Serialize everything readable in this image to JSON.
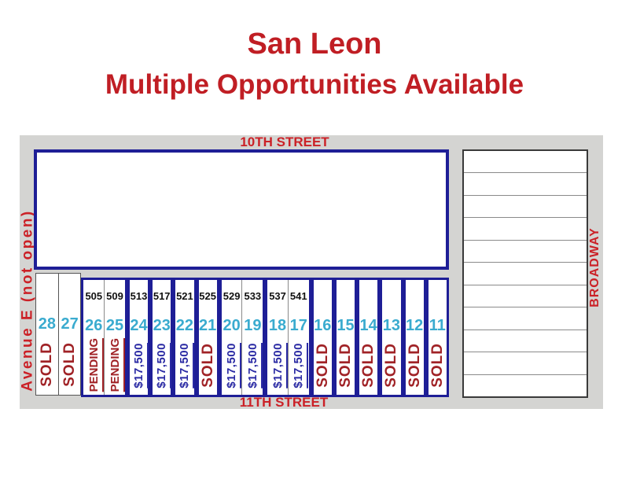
{
  "title": {
    "line1": "San Leon",
    "line2": "Multiple Opportunities Available"
  },
  "streets": {
    "top": "10TH STREET",
    "bottom": "11TH STREET",
    "left": "Avenue E (not open)",
    "right": "BROADWAY"
  },
  "lots": [
    {
      "number": "28",
      "address": "",
      "status": "SOLD",
      "style": "sold"
    },
    {
      "number": "27",
      "address": "",
      "status": "SOLD",
      "style": "sold"
    },
    {
      "number": "26",
      "address": "505",
      "status": "PENDING",
      "style": "pending"
    },
    {
      "number": "25",
      "address": "509",
      "status": "PENDING",
      "style": "pending"
    },
    {
      "number": "24",
      "address": "513",
      "status": "$17,500",
      "style": "price"
    },
    {
      "number": "23",
      "address": "517",
      "status": "$17,500",
      "style": "price"
    },
    {
      "number": "22",
      "address": "521",
      "status": "$17,500",
      "style": "price"
    },
    {
      "number": "21",
      "address": "525",
      "status": "SOLD",
      "style": "sold"
    },
    {
      "number": "20",
      "address": "529",
      "status": "$17,500",
      "style": "price"
    },
    {
      "number": "19",
      "address": "533",
      "status": "$17,500",
      "style": "price"
    },
    {
      "number": "18",
      "address": "537",
      "status": "$17,500",
      "style": "price"
    },
    {
      "number": "17",
      "address": "541",
      "status": "$17,500",
      "style": "price"
    },
    {
      "number": "16",
      "address": "",
      "status": "SOLD",
      "style": "sold"
    },
    {
      "number": "15",
      "address": "",
      "status": "SOLD",
      "style": "sold"
    },
    {
      "number": "14",
      "address": "",
      "status": "SOLD",
      "style": "sold"
    },
    {
      "number": "13",
      "address": "",
      "status": "SOLD",
      "style": "sold"
    },
    {
      "number": "12",
      "address": "",
      "status": "SOLD",
      "style": "sold"
    },
    {
      "number": "11",
      "address": "",
      "status": "SOLD",
      "style": "sold"
    }
  ],
  "lot_groups": [
    {
      "start": 0,
      "count": 2,
      "border": "gray"
    },
    {
      "start": 2,
      "count": 2,
      "border": "blue"
    },
    {
      "start": 4,
      "count": 1,
      "border": "blue"
    },
    {
      "start": 5,
      "count": 1,
      "border": "blue"
    },
    {
      "start": 6,
      "count": 1,
      "border": "blue"
    },
    {
      "start": 7,
      "count": 1,
      "border": "blue"
    },
    {
      "start": 8,
      "count": 2,
      "border": "blue"
    },
    {
      "start": 10,
      "count": 2,
      "border": "blue"
    },
    {
      "start": 12,
      "count": 1,
      "border": "blue"
    },
    {
      "start": 13,
      "count": 1,
      "border": "blue"
    },
    {
      "start": 14,
      "count": 1,
      "border": "blue"
    },
    {
      "start": 15,
      "count": 1,
      "border": "blue"
    },
    {
      "start": 16,
      "count": 1,
      "border": "blue"
    },
    {
      "start": 17,
      "count": 1,
      "border": "blue"
    }
  ],
  "right_block": {
    "rows": 11
  },
  "colors": {
    "title_red": "#c01e24",
    "street_red": "#cb2127",
    "status_red": "#a02226",
    "price_navy": "#2a2aa4",
    "number_cyan": "#3aabcf",
    "border_navy": "#1e1e96",
    "street_gray": "#d4d4d2"
  }
}
